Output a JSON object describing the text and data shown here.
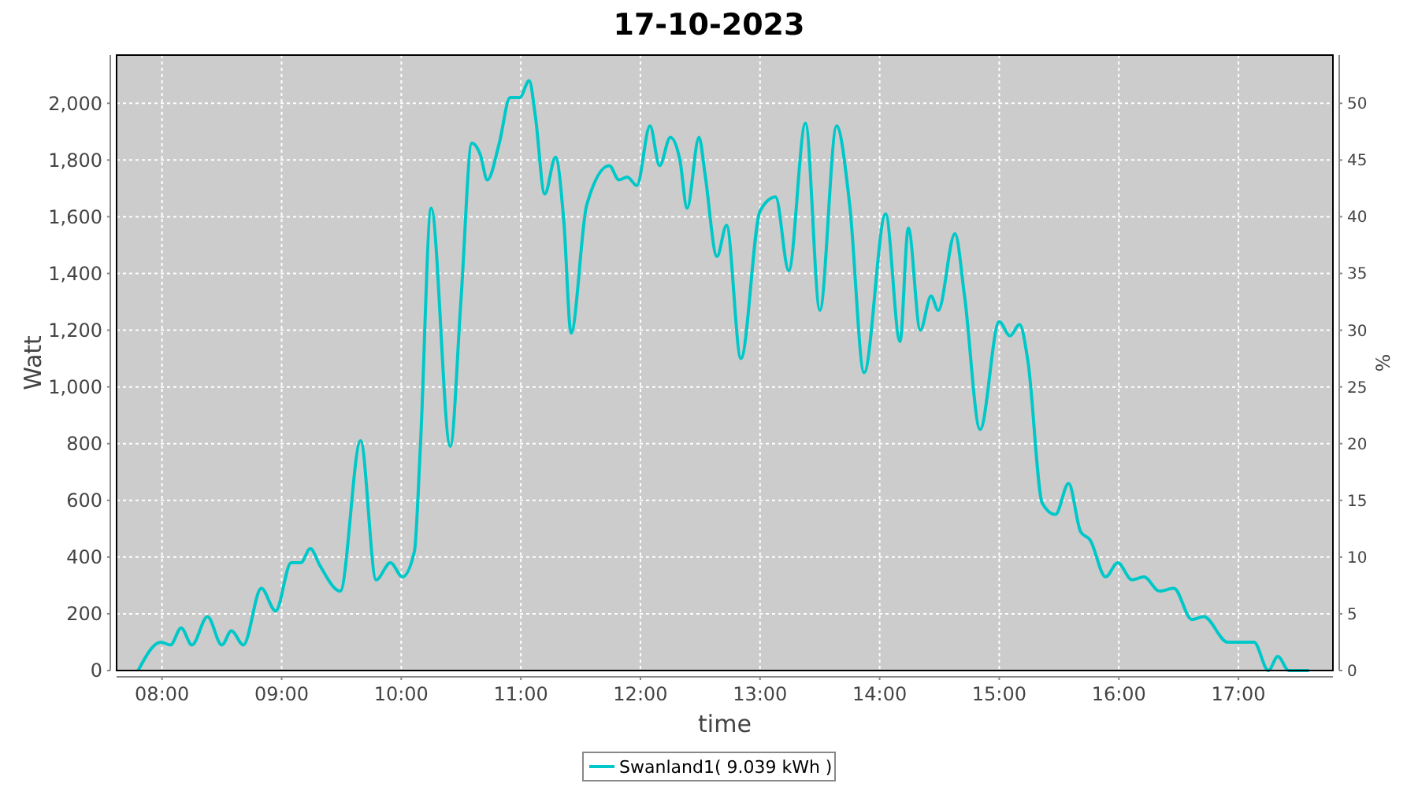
{
  "chart_data": {
    "type": "line",
    "title": "17-10-2023",
    "xlabel": "time",
    "ylabel": "Watt",
    "y2label": "%",
    "xlim": [
      7.62,
      17.79
    ],
    "xticks": [
      {
        "value": 8,
        "label": "08:00"
      },
      {
        "value": 9,
        "label": "09:00"
      },
      {
        "value": 10,
        "label": "10:00"
      },
      {
        "value": 11,
        "label": "11:00"
      },
      {
        "value": 12,
        "label": "12:00"
      },
      {
        "value": 13,
        "label": "13:00"
      },
      {
        "value": 14,
        "label": "14:00"
      },
      {
        "value": 15,
        "label": "15:00"
      },
      {
        "value": 16,
        "label": "16:00"
      },
      {
        "value": 17,
        "label": "17:00"
      }
    ],
    "ylim": [
      0,
      2170
    ],
    "yticks": [
      {
        "value": 0,
        "label": "0"
      },
      {
        "value": 200,
        "label": "200"
      },
      {
        "value": 400,
        "label": "400"
      },
      {
        "value": 600,
        "label": "600"
      },
      {
        "value": 800,
        "label": "800"
      },
      {
        "value": 1000,
        "label": "1,000"
      },
      {
        "value": 1200,
        "label": "1,200"
      },
      {
        "value": 1400,
        "label": "1,400"
      },
      {
        "value": 1600,
        "label": "1,600"
      },
      {
        "value": 1800,
        "label": "1,800"
      },
      {
        "value": 2000,
        "label": "2,000"
      }
    ],
    "y2lim": [
      0,
      54.25
    ],
    "y2ticks": [
      0,
      5,
      10,
      15,
      20,
      25,
      30,
      35,
      40,
      45,
      50
    ],
    "grid": true,
    "legend": "bottom",
    "marker": "none",
    "line_style": "solid",
    "series": [
      {
        "name": "Swanland1( 9.039 kWh )",
        "color": "#00c8c8",
        "x": [
          7.8,
          7.99,
          8.07,
          8.16,
          8.25,
          8.38,
          8.5,
          8.58,
          8.68,
          8.83,
          8.95,
          9.08,
          9.16,
          9.24,
          9.32,
          9.49,
          9.66,
          9.79,
          9.91,
          10.01,
          10.11,
          10.16,
          10.25,
          10.41,
          10.5,
          10.59,
          10.66,
          10.72,
          10.82,
          10.91,
          10.99,
          11.07,
          11.12,
          11.2,
          11.29,
          11.36,
          11.42,
          11.55,
          11.74,
          11.82,
          11.89,
          11.97,
          12.08,
          12.16,
          12.25,
          12.33,
          12.39,
          12.49,
          12.54,
          12.64,
          12.72,
          12.84,
          13.0,
          13.13,
          13.24,
          13.38,
          13.5,
          13.64,
          13.75,
          13.87,
          14.05,
          14.17,
          14.24,
          14.34,
          14.43,
          14.49,
          14.63,
          14.71,
          14.84,
          15.0,
          15.09,
          15.17,
          15.24,
          15.36,
          15.47,
          15.58,
          15.68,
          15.76,
          15.89,
          15.99,
          16.11,
          16.21,
          16.34,
          16.46,
          16.61,
          16.71,
          16.91,
          17.13,
          17.25,
          17.33,
          17.42,
          17.59
        ],
        "values": [
          0,
          100,
          90,
          150,
          90,
          190,
          90,
          140,
          90,
          290,
          210,
          380,
          380,
          430,
          370,
          280,
          810,
          320,
          380,
          330,
          420,
          790,
          1630,
          790,
          1310,
          1860,
          1820,
          1730,
          1860,
          2020,
          2020,
          2080,
          1960,
          1680,
          1810,
          1580,
          1190,
          1640,
          1780,
          1730,
          1740,
          1710,
          1920,
          1780,
          1880,
          1800,
          1630,
          1880,
          1750,
          1460,
          1570,
          1100,
          1620,
          1670,
          1410,
          1930,
          1270,
          1920,
          1640,
          1050,
          1610,
          1160,
          1560,
          1200,
          1320,
          1270,
          1540,
          1320,
          850,
          1230,
          1180,
          1220,
          1090,
          590,
          550,
          660,
          490,
          460,
          330,
          380,
          320,
          330,
          280,
          290,
          180,
          190,
          100,
          100,
          0,
          50,
          0,
          0
        ]
      }
    ]
  }
}
